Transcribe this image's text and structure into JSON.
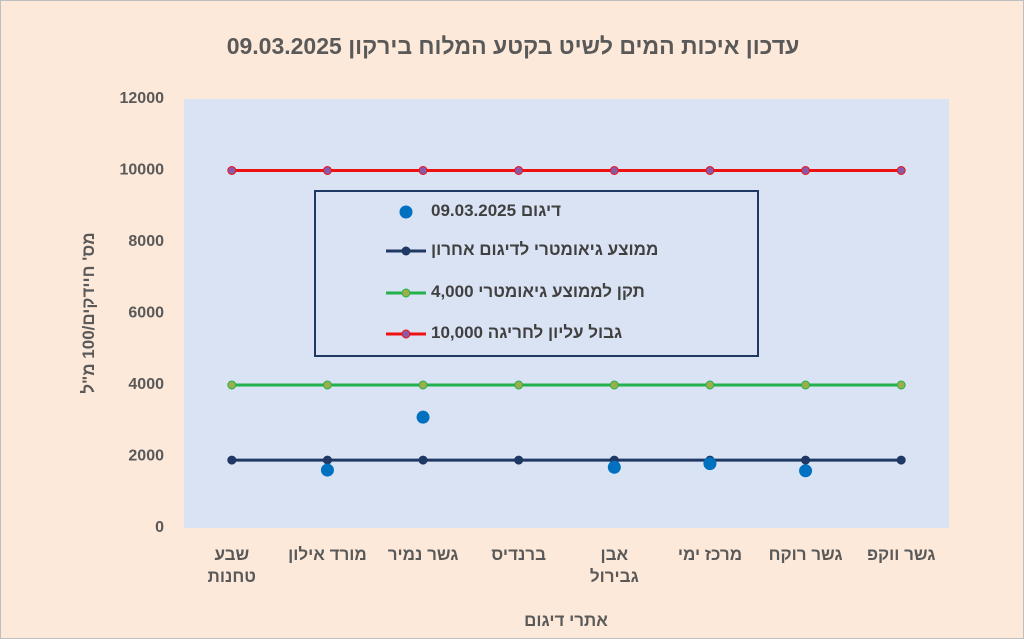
{
  "chart_data": {
    "type": "line",
    "title": "עדכון איכות המים לשיט בקטע המלוח בירקון 09.03.2025",
    "x_label": "אתרי דיגום",
    "y_label": "מס' חיידקים/100 מ\"ל",
    "categories": [
      "שבע טחנות",
      "מורד אילון",
      "גשר נמיר",
      "ברנדיס",
      "אבן גבירול",
      "מרכז ימי",
      "גשר רוקח",
      "גשר ווקפ"
    ],
    "ylim": [
      0,
      12000
    ],
    "yticks": [
      0,
      2000,
      4000,
      6000,
      8000,
      10000,
      12000
    ],
    "series": [
      {
        "name": "דיגום 09.03.2025",
        "style": "markers",
        "color": "#0070c0",
        "values": [
          null,
          1620,
          3100,
          null,
          1700,
          1800,
          1600,
          null
        ]
      },
      {
        "name": "ממוצע גיאומטרי לדיגום אחרון",
        "style": "line",
        "color": "#1f3864",
        "marker_color": "#1f3864",
        "values": [
          1900,
          1900,
          1900,
          1900,
          1900,
          1900,
          1900,
          1900
        ]
      },
      {
        "name": "תקן לממוצע גיאומטרי 4,000",
        "style": "line",
        "color": "#22b14c",
        "marker_color": "#9bae4a",
        "values": [
          4000,
          4000,
          4000,
          4000,
          4000,
          4000,
          4000,
          4000
        ]
      },
      {
        "name": "גבול עליון לחריגה 10,000",
        "style": "line",
        "color": "#ee1111",
        "marker_color": "#8a5aa8",
        "values": [
          10000,
          10000,
          10000,
          10000,
          10000,
          10000,
          10000,
          10000
        ]
      }
    ]
  }
}
